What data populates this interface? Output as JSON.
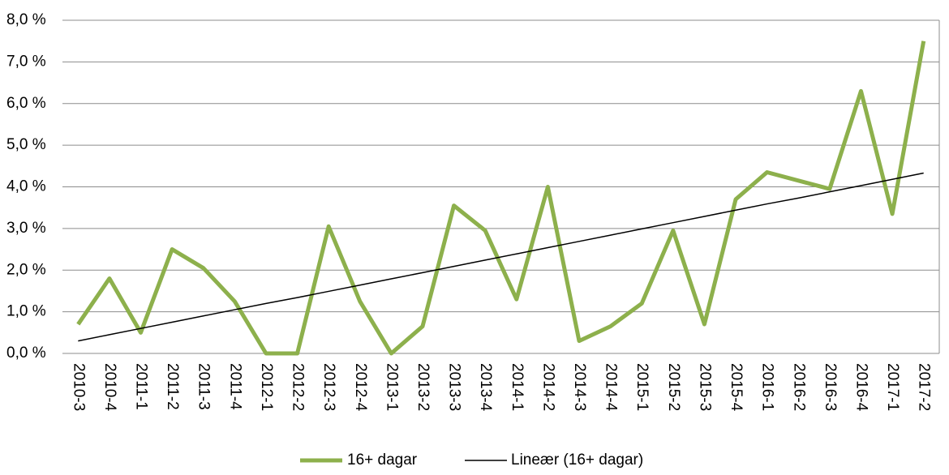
{
  "chart_data": {
    "type": "line",
    "categories": [
      "2010-3",
      "2010-4",
      "2011-1",
      "2011-2",
      "2011-3",
      "2011-4",
      "2012-1",
      "2012-2",
      "2012-3",
      "2012-4",
      "2013-1",
      "2013-2",
      "2013-3",
      "2013-4",
      "2014-1",
      "2014-2",
      "2014-3",
      "2014-4",
      "2015-1",
      "2015-2",
      "2015-3",
      "2015-4",
      "2016-1",
      "2016-2",
      "2016-3",
      "2016-4",
      "2017-1",
      "2017-2"
    ],
    "series": [
      {
        "name": "16+ dagar",
        "color": "#8db04c",
        "values": [
          0.7,
          1.8,
          0.5,
          2.5,
          2.05,
          1.25,
          0.0,
          0.0,
          3.05,
          1.25,
          0.0,
          0.65,
          3.55,
          2.95,
          1.3,
          4.0,
          0.3,
          0.65,
          1.2,
          2.95,
          0.7,
          3.7,
          4.35,
          4.15,
          3.95,
          6.3,
          3.35,
          7.5
        ]
      },
      {
        "name": "Lineær (16+ dagar)",
        "color": "#000000",
        "values": [
          0.3,
          0.45,
          0.6,
          0.75,
          0.9,
          1.05,
          1.2,
          1.34,
          1.49,
          1.64,
          1.79,
          1.94,
          2.09,
          2.24,
          2.39,
          2.54,
          2.69,
          2.84,
          2.99,
          3.14,
          3.29,
          3.44,
          3.59,
          3.73,
          3.88,
          4.03,
          4.18,
          4.33
        ]
      }
    ],
    "ylim": [
      0,
      8
    ],
    "yticks": [
      {
        "value": 0,
        "label": "0,0 %"
      },
      {
        "value": 1,
        "label": "1,0 %"
      },
      {
        "value": 2,
        "label": "2,0 %"
      },
      {
        "value": 3,
        "label": "3,0 %"
      },
      {
        "value": 4,
        "label": "4,0 %"
      },
      {
        "value": 5,
        "label": "5,0 %"
      },
      {
        "value": 6,
        "label": "6,0 %"
      },
      {
        "value": 7,
        "label": "7,0 %"
      },
      {
        "value": 8,
        "label": "8,0 %"
      }
    ],
    "grid": true
  }
}
